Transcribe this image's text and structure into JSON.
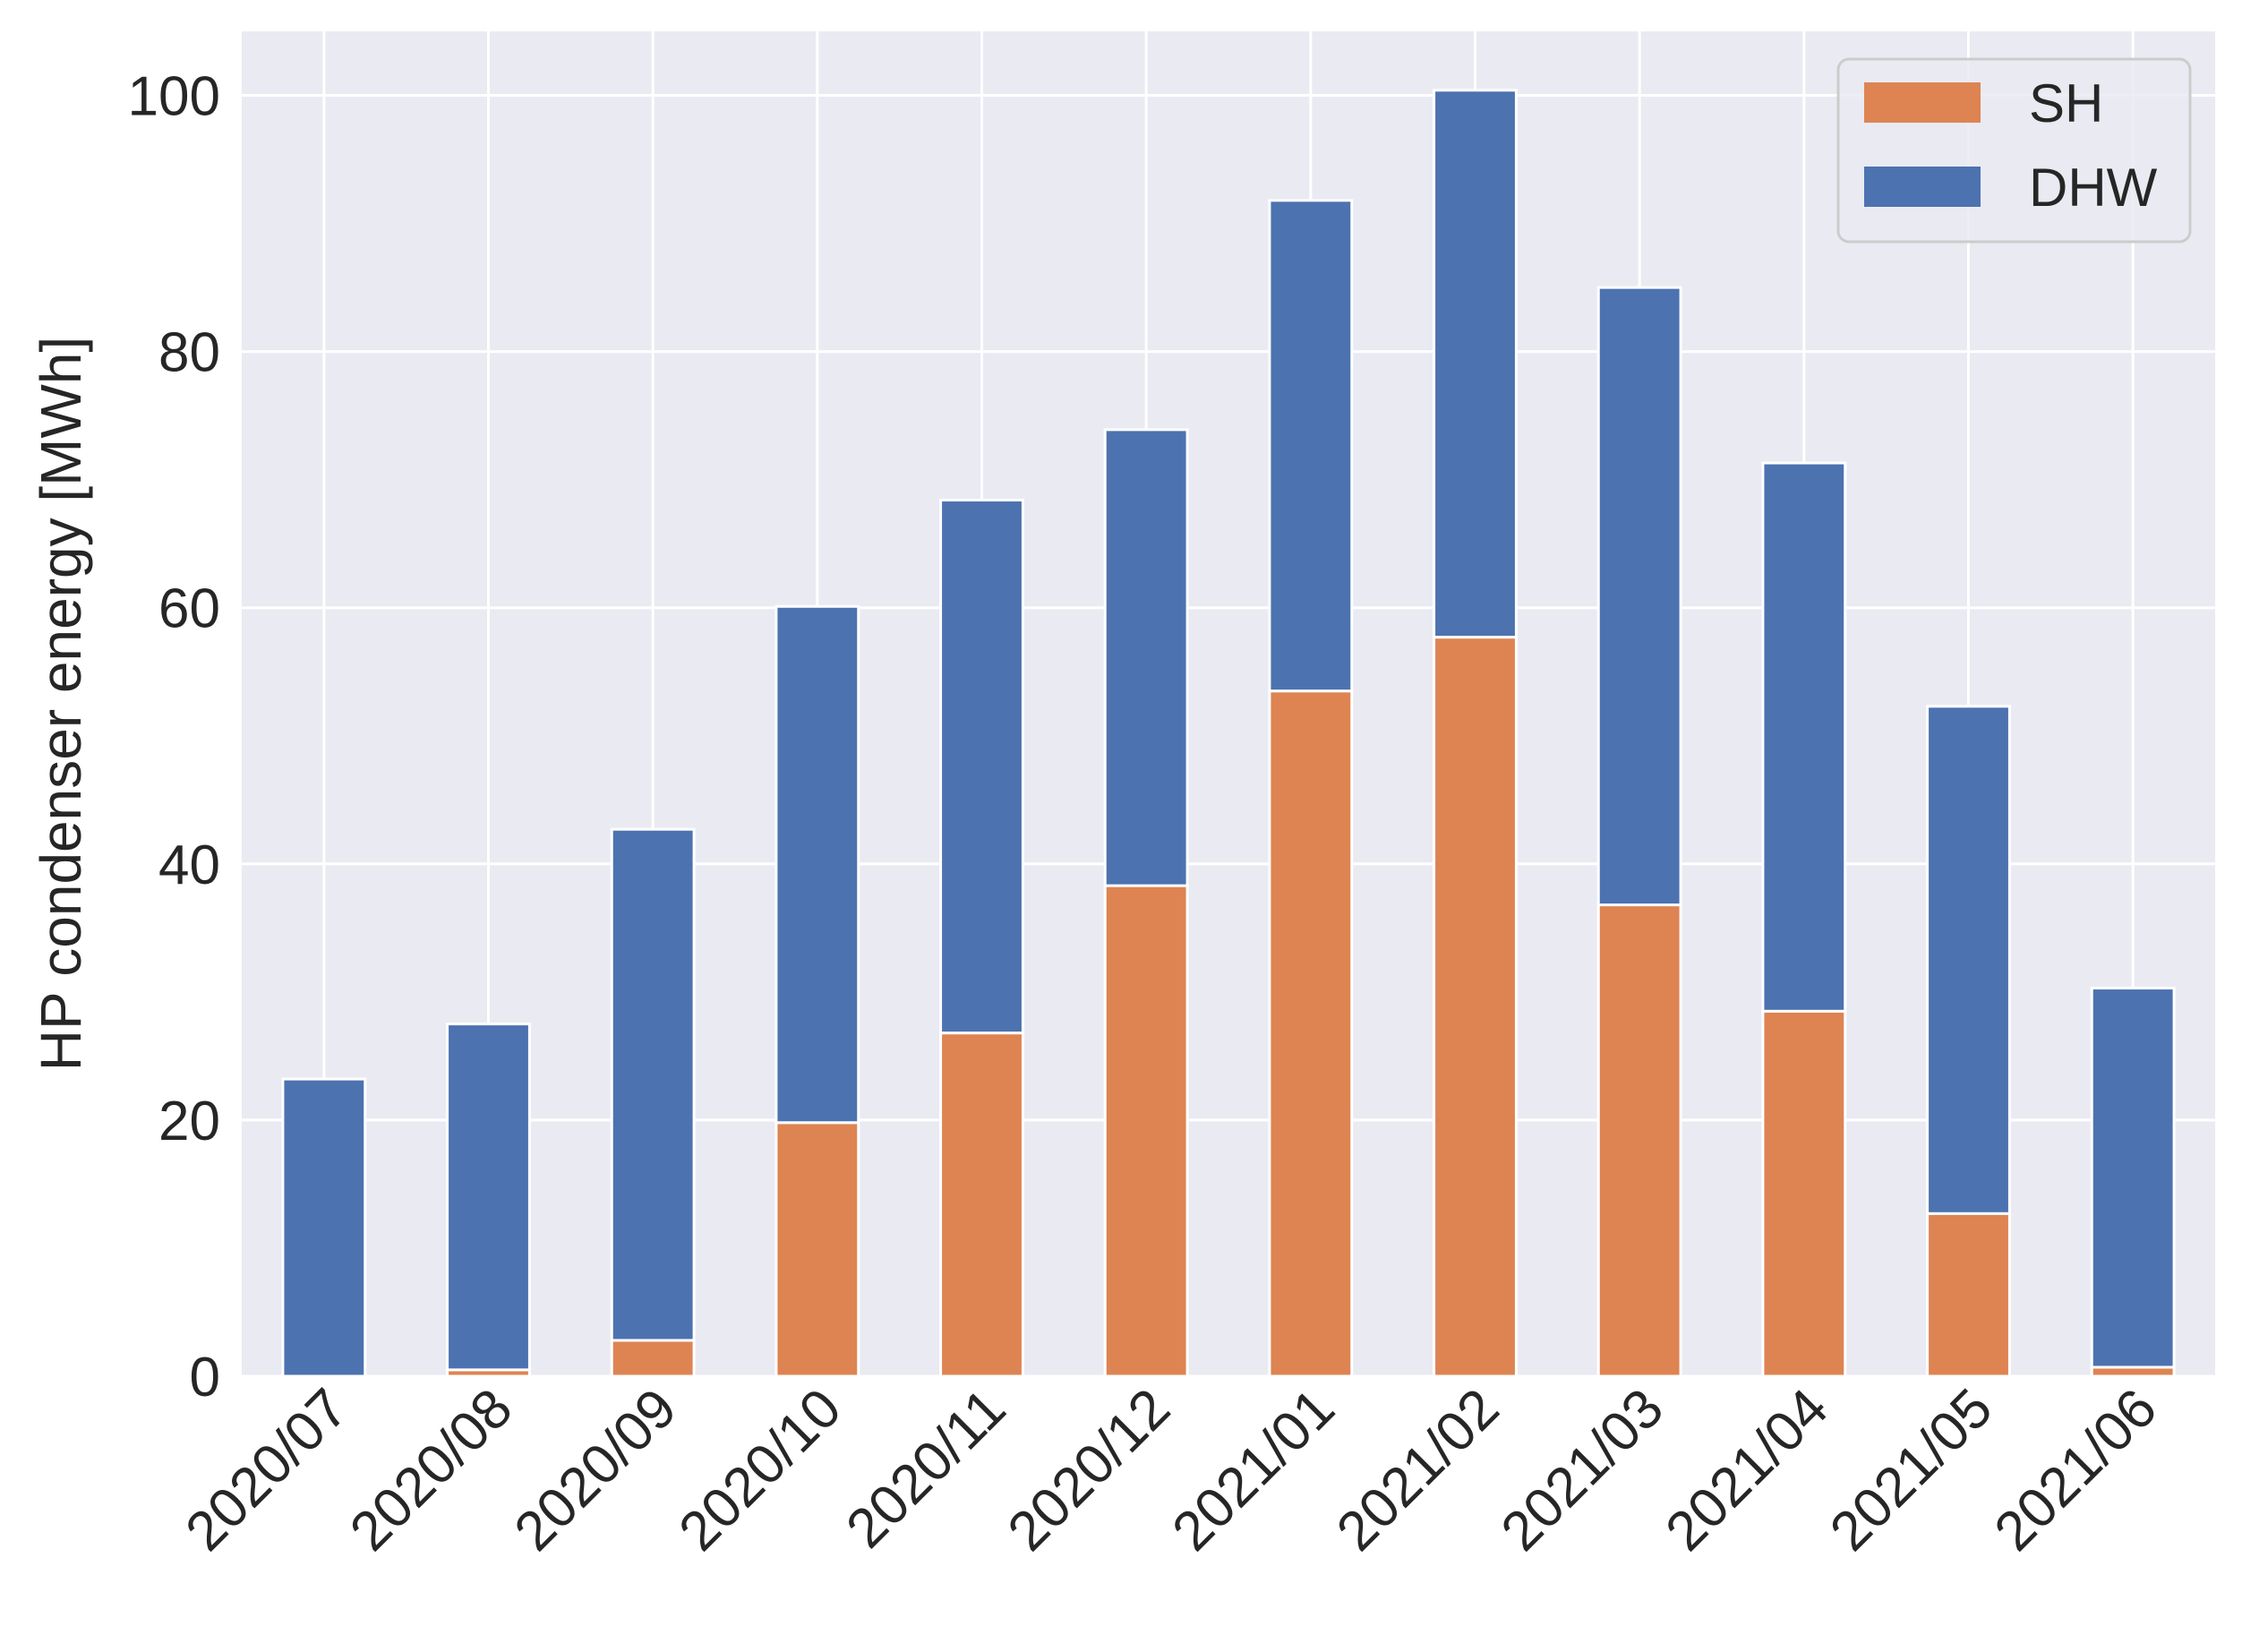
{
  "chart_data": {
    "type": "bar",
    "stacked": true,
    "title": "",
    "xlabel": "",
    "ylabel": "HP condenser energy [MWh]",
    "ylim": [
      0,
      105
    ],
    "yticks": [
      0,
      20,
      40,
      60,
      80,
      100
    ],
    "grid": true,
    "legend_position": "top-right",
    "categories": [
      "2020/07",
      "2020/08",
      "2020/09",
      "2020/10",
      "2020/11",
      "2020/12",
      "2021/01",
      "2021/02",
      "2021/03",
      "2021/04",
      "2021/05",
      "2021/06"
    ],
    "series": [
      {
        "name": "SH",
        "color": "#dd8452",
        "values": [
          0,
          0.5,
          2.8,
          19.8,
          26.8,
          38.3,
          53.5,
          57.7,
          36.8,
          28.5,
          12.7,
          0.7
        ]
      },
      {
        "name": "DHW",
        "color": "#4c72b0",
        "values": [
          23.2,
          27.0,
          39.9,
          40.3,
          41.6,
          35.6,
          38.3,
          42.7,
          48.2,
          42.8,
          39.6,
          29.6
        ]
      }
    ],
    "colors": {
      "plot_background": "#eaeaf2",
      "grid": "#ffffff",
      "text": "#262626"
    }
  }
}
